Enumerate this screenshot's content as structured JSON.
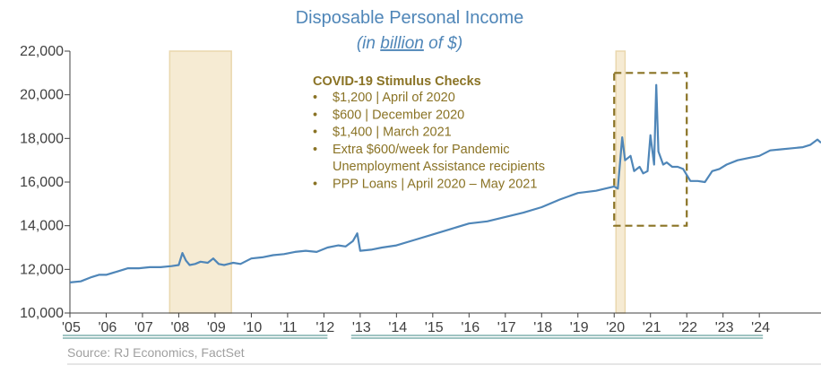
{
  "chart_data": {
    "type": "line",
    "title": "Disposable Personal Income",
    "subtitle_prefix": "(in ",
    "subtitle_emphasis": "billion",
    "subtitle_suffix": " of $)",
    "ylim": [
      10000,
      22000
    ],
    "y_ticks": [
      10000,
      12000,
      14000,
      16000,
      18000,
      20000,
      22000
    ],
    "y_tick_labels": [
      "10,000",
      "12,000",
      "14,000",
      "16,000",
      "18,000",
      "20,000",
      "22,000"
    ],
    "x_range": [
      2005.0,
      2025.7
    ],
    "x_ticks": [
      2005,
      2006,
      2007,
      2008,
      2009,
      2010,
      2011,
      2012,
      2013,
      2014,
      2015,
      2016,
      2017,
      2018,
      2019,
      2020,
      2021,
      2022,
      2023,
      2024
    ],
    "x_tick_labels": [
      "'05",
      "'06",
      "'07",
      "'08",
      "'09",
      "'10",
      "'11",
      "'12",
      "'13",
      "'14",
      "'15",
      "'16",
      "'17",
      "'18",
      "'19",
      "'20",
      "'21",
      "'22",
      "'23",
      "'24"
    ],
    "series": [
      {
        "x": [
          2005.0,
          2005.3,
          2005.6,
          2005.8,
          2006.0,
          2006.3,
          2006.6,
          2006.9,
          2007.2,
          2007.5,
          2007.8,
          2008.0,
          2008.1,
          2008.2,
          2008.3,
          2008.45,
          2008.6,
          2008.8,
          2008.95,
          2009.1,
          2009.25,
          2009.5,
          2009.7,
          2010.0,
          2010.3,
          2010.6,
          2010.9,
          2011.2,
          2011.5,
          2011.8,
          2012.1,
          2012.4,
          2012.6,
          2012.8,
          2012.92,
          2013.0,
          2013.3,
          2013.6,
          2014.0,
          2014.5,
          2015.0,
          2015.5,
          2016.0,
          2016.5,
          2017.0,
          2017.5,
          2018.0,
          2018.5,
          2019.0,
          2019.5,
          2020.0,
          2020.1,
          2020.22,
          2020.3,
          2020.45,
          2020.55,
          2020.7,
          2020.8,
          2020.92,
          2021.0,
          2021.1,
          2021.16,
          2021.22,
          2021.35,
          2021.45,
          2021.6,
          2021.75,
          2021.9,
          2022.1,
          2022.3,
          2022.5,
          2022.7,
          2022.9,
          2023.1,
          2023.4,
          2023.7,
          2024.0,
          2024.3,
          2024.6,
          2024.9,
          2025.2,
          2025.4,
          2025.6,
          2025.7
        ],
        "y": [
          11400,
          11450,
          11650,
          11750,
          11750,
          11900,
          12050,
          12050,
          12100,
          12100,
          12150,
          12200,
          12750,
          12400,
          12200,
          12250,
          12350,
          12300,
          12500,
          12250,
          12200,
          12300,
          12250,
          12500,
          12550,
          12650,
          12700,
          12800,
          12850,
          12800,
          13000,
          13100,
          13050,
          13300,
          13650,
          12850,
          12900,
          13000,
          13100,
          13350,
          13600,
          13850,
          14100,
          14200,
          14400,
          14600,
          14850,
          15200,
          15500,
          15600,
          15800,
          15700,
          18050,
          17000,
          17200,
          16500,
          16700,
          16400,
          16500,
          18150,
          16800,
          20450,
          17400,
          16800,
          16900,
          16700,
          16700,
          16600,
          16050,
          16050,
          16000,
          16500,
          16600,
          16800,
          17000,
          17100,
          17200,
          17450,
          17500,
          17550,
          17600,
          17700,
          17950,
          17800
        ],
        "color": "#4f86b8"
      }
    ],
    "shaded_ranges": [
      [
        2007.75,
        2009.45
      ],
      [
        2020.05,
        2020.3
      ]
    ],
    "highlight_box": {
      "x": [
        2020.0,
        2022.0
      ],
      "y": [
        14000,
        21000
      ]
    },
    "annotation": {
      "title": "COVID-19 Stimulus Checks",
      "items": [
        [
          "$1,200 | April of 2020"
        ],
        [
          "$600 | December 2020"
        ],
        [
          "$1,400 | March 2021"
        ],
        [
          "Extra $600/week for Pandemic",
          "Unemployment Assistance recipients"
        ],
        [
          "PPP Loans | April 2020 – May 2021"
        ]
      ]
    },
    "source": "Source: RJ Economics, FactSet",
    "grid": false,
    "legend": "none"
  },
  "colors": {
    "line": "#4f86b8",
    "recession": "#f6ebd3",
    "recession_edge": "#ead7ad",
    "annotation": "#8a7325",
    "axis": "#404040",
    "underline": "#3f8a85"
  }
}
